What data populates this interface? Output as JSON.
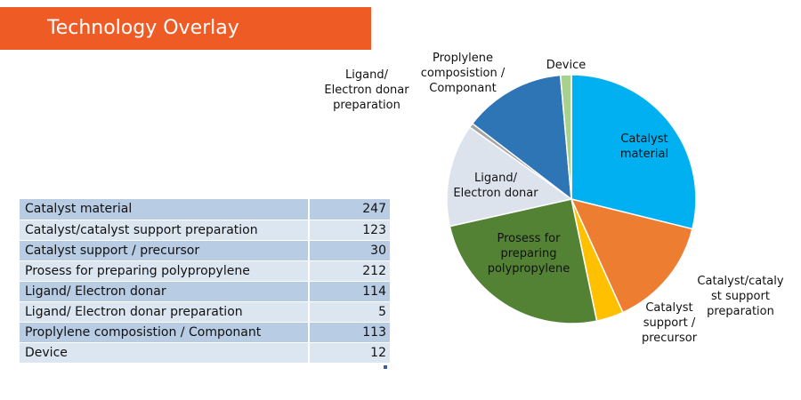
{
  "header": {
    "title": "Technology Overlay"
  },
  "colors": {
    "title_bar": "#ef5b25",
    "row_odd": "#b8cce4",
    "row_even": "#dce6f1"
  },
  "table": {
    "rows": [
      {
        "label": "Catalyst material",
        "value": "247"
      },
      {
        "label": "Catalyst/catalyst support preparation",
        "value": "123"
      },
      {
        "label": "Catalyst support / precursor",
        "value": "30"
      },
      {
        "label": "Prosess for preparing polypropylene",
        "value": "212"
      },
      {
        "label": "Ligand/ Electron donar",
        "value": "114"
      },
      {
        "label": "Ligand/ Electron donar preparation",
        "value": "5"
      },
      {
        "label": "Proplylene composistion / Componant",
        "value": "113"
      },
      {
        "label": "Device",
        "value": "12"
      }
    ]
  },
  "chart_data": {
    "type": "pie",
    "title": "",
    "slices": [
      {
        "label": "Catalyst material",
        "label_lines": [
          "Catalyst",
          "material"
        ],
        "value": 247,
        "color": "#00b0f0"
      },
      {
        "label": "Catalyst/catalyst support preparation",
        "label_lines": [
          "Catalyst/cataly",
          "st support",
          "preparation"
        ],
        "value": 123,
        "color": "#ed7d31"
      },
      {
        "label": "Catalyst support / precursor",
        "label_lines": [
          "Catalyst",
          "support /",
          "precursor"
        ],
        "value": 30,
        "color": "#ffc000"
      },
      {
        "label": "Prosess for preparing polypropylene",
        "label_lines": [
          "Prosess for",
          "preparing",
          "polypropylene"
        ],
        "value": 212,
        "color": "#548235"
      },
      {
        "label": "Ligand/ Electron donar",
        "label_lines": [
          "Ligand/",
          "Electron donar"
        ],
        "value": 114,
        "color": "#dde3ed"
      },
      {
        "label": "Ligand/ Electron donar preparation",
        "label_lines": [
          "Ligand/",
          "Electron donar",
          "preparation"
        ],
        "value": 5,
        "color": "#a5a5a5"
      },
      {
        "label": "Proplylene composistion / Componant",
        "label_lines": [
          "Proplylene",
          "composistion /",
          "Componant"
        ],
        "value": 113,
        "color": "#2e75b6"
      },
      {
        "label": "Device",
        "label_lines": [
          "Device"
        ],
        "value": 12,
        "color": "#a9d18e"
      }
    ]
  }
}
